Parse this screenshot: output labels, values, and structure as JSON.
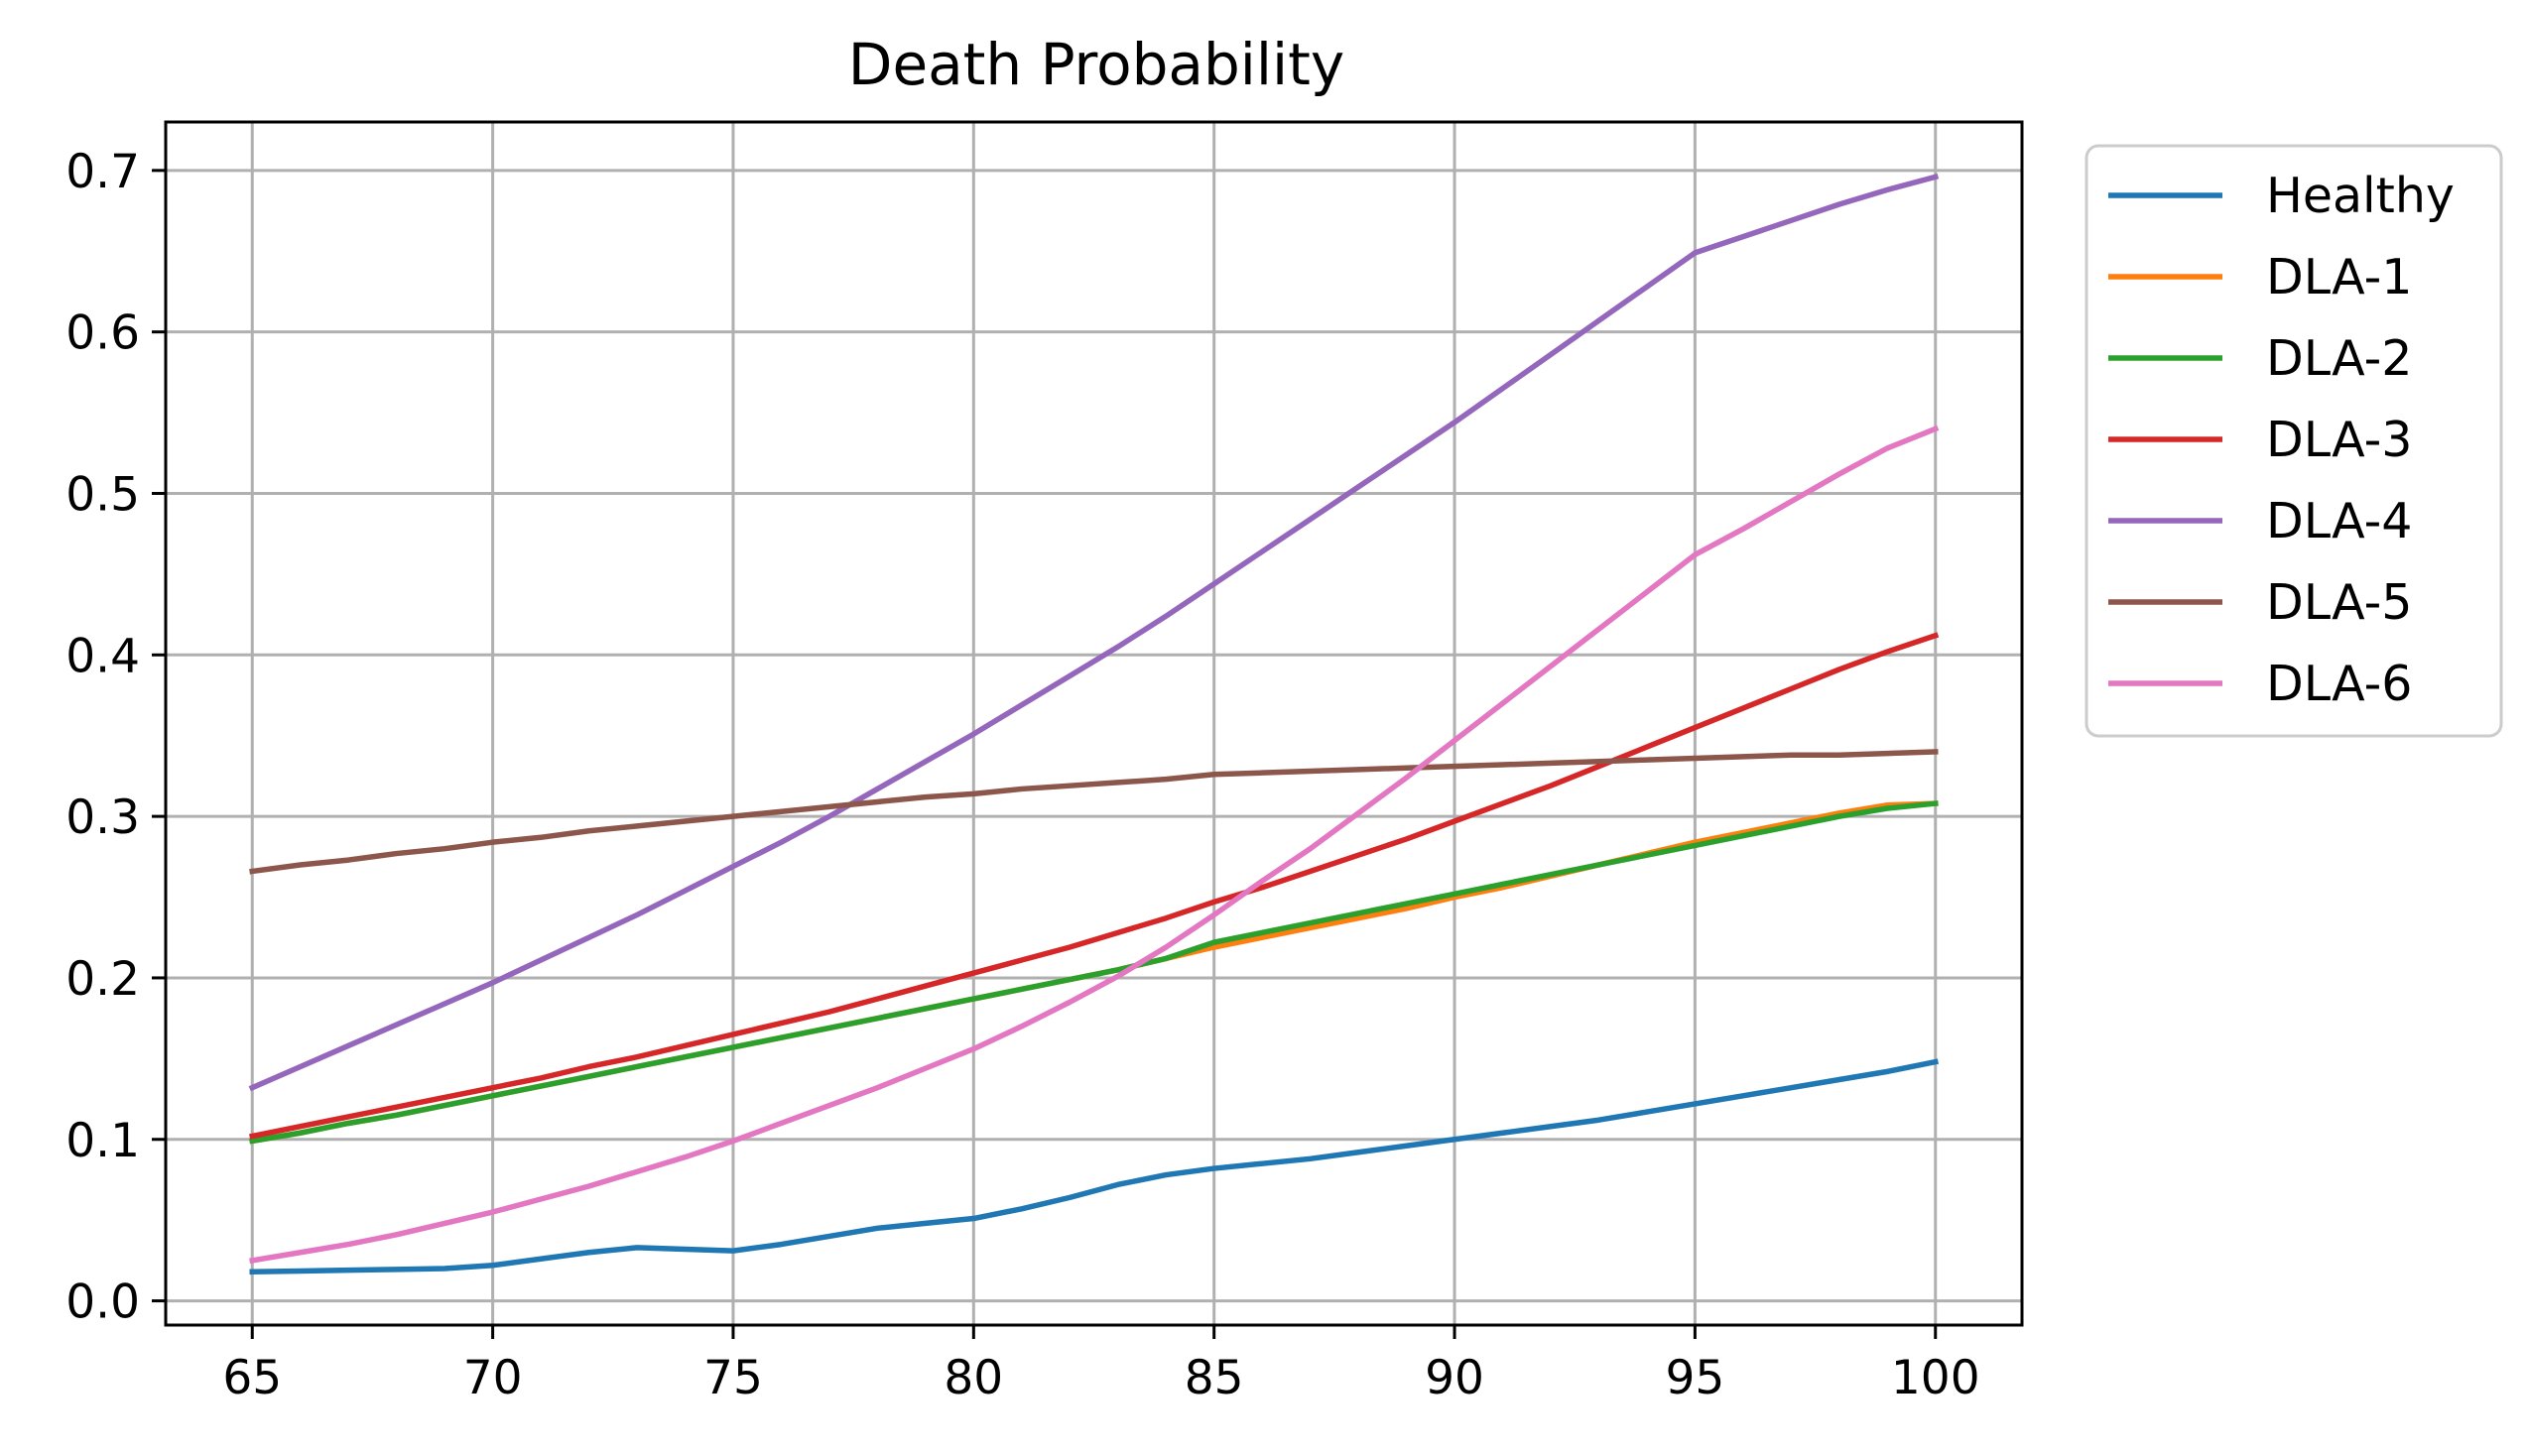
{
  "chart_data": {
    "type": "line",
    "title": "Death Probability",
    "xlabel": "",
    "ylabel": "",
    "xlim": [
      63.2,
      101.8
    ],
    "ylim": [
      -0.015,
      0.73
    ],
    "xticks": [
      65,
      70,
      75,
      80,
      85,
      90,
      95,
      100
    ],
    "xtick_labels": [
      "65",
      "70",
      "75",
      "80",
      "85",
      "90",
      "95",
      "100"
    ],
    "yticks": [
      0.0,
      0.1,
      0.2,
      0.3,
      0.4,
      0.5,
      0.6,
      0.7
    ],
    "ytick_labels": [
      "0.0",
      "0.1",
      "0.2",
      "0.3",
      "0.4",
      "0.5",
      "0.6",
      "0.7"
    ],
    "grid": true,
    "legend_position": "outside-right-top",
    "x": [
      65,
      66,
      67,
      68,
      69,
      70,
      71,
      72,
      73,
      74,
      75,
      76,
      77,
      78,
      79,
      80,
      81,
      82,
      83,
      84,
      85,
      86,
      87,
      88,
      89,
      90,
      91,
      92,
      93,
      94,
      95,
      96,
      97,
      98,
      99,
      100
    ],
    "series": [
      {
        "name": "Healthy",
        "color": "#1f77b4",
        "values": [
          0.018,
          0.0185,
          0.019,
          0.0195,
          0.02,
          0.022,
          0.026,
          0.03,
          0.033,
          0.032,
          0.031,
          0.035,
          0.04,
          0.045,
          0.048,
          0.051,
          0.057,
          0.064,
          0.072,
          0.078,
          0.082,
          0.085,
          0.088,
          0.092,
          0.096,
          0.1,
          0.104,
          0.108,
          0.112,
          0.117,
          0.122,
          0.127,
          0.132,
          0.137,
          0.142,
          0.148
        ]
      },
      {
        "name": "DLA-1",
        "color": "#ff7f0e",
        "values": [
          0.099,
          0.104,
          0.11,
          0.115,
          0.121,
          0.127,
          0.133,
          0.139,
          0.145,
          0.151,
          0.157,
          0.163,
          0.169,
          0.175,
          0.181,
          0.187,
          0.193,
          0.199,
          0.205,
          0.212,
          0.219,
          0.225,
          0.231,
          0.237,
          0.243,
          0.25,
          0.256,
          0.263,
          0.27,
          0.277,
          0.284,
          0.29,
          0.296,
          0.302,
          0.307,
          0.308
        ]
      },
      {
        "name": "DLA-2",
        "color": "#2ca02c",
        "values": [
          0.099,
          0.104,
          0.11,
          0.115,
          0.121,
          0.127,
          0.133,
          0.139,
          0.145,
          0.151,
          0.157,
          0.163,
          0.169,
          0.175,
          0.181,
          0.187,
          0.193,
          0.199,
          0.205,
          0.212,
          0.222,
          0.228,
          0.234,
          0.24,
          0.246,
          0.252,
          0.258,
          0.264,
          0.27,
          0.276,
          0.282,
          0.288,
          0.294,
          0.3,
          0.305,
          0.308
        ]
      },
      {
        "name": "DLA-3",
        "color": "#d62728",
        "values": [
          0.102,
          0.108,
          0.114,
          0.12,
          0.126,
          0.132,
          0.138,
          0.145,
          0.151,
          0.158,
          0.165,
          0.172,
          0.179,
          0.187,
          0.195,
          0.203,
          0.211,
          0.219,
          0.228,
          0.237,
          0.247,
          0.256,
          0.266,
          0.276,
          0.286,
          0.297,
          0.308,
          0.319,
          0.331,
          0.343,
          0.355,
          0.367,
          0.379,
          0.391,
          0.402,
          0.412
        ]
      },
      {
        "name": "DLA-4",
        "color": "#9467bd",
        "values": [
          0.132,
          0.145,
          0.158,
          0.171,
          0.184,
          0.197,
          0.211,
          0.225,
          0.239,
          0.254,
          0.269,
          0.284,
          0.3,
          0.317,
          0.334,
          0.351,
          0.369,
          0.387,
          0.405,
          0.424,
          0.444,
          0.464,
          0.484,
          0.504,
          0.524,
          0.544,
          0.565,
          0.586,
          0.607,
          0.628,
          0.649,
          0.659,
          0.669,
          0.679,
          0.688,
          0.696
        ]
      },
      {
        "name": "DLA-5",
        "color": "#8c564b",
        "values": [
          0.266,
          0.27,
          0.273,
          0.277,
          0.28,
          0.284,
          0.287,
          0.291,
          0.294,
          0.297,
          0.3,
          0.303,
          0.306,
          0.309,
          0.312,
          0.314,
          0.317,
          0.319,
          0.321,
          0.323,
          0.326,
          0.327,
          0.328,
          0.329,
          0.33,
          0.331,
          0.332,
          0.333,
          0.334,
          0.335,
          0.336,
          0.337,
          0.338,
          0.338,
          0.339,
          0.34
        ]
      },
      {
        "name": "DLA-6",
        "color": "#e377c2",
        "values": [
          0.025,
          0.03,
          0.035,
          0.041,
          0.048,
          0.055,
          0.063,
          0.071,
          0.08,
          0.089,
          0.099,
          0.11,
          0.121,
          0.132,
          0.144,
          0.156,
          0.17,
          0.185,
          0.201,
          0.219,
          0.239,
          0.26,
          0.28,
          0.302,
          0.324,
          0.347,
          0.37,
          0.393,
          0.416,
          0.439,
          0.462,
          0.478,
          0.495,
          0.512,
          0.528,
          0.54
        ]
      }
    ]
  }
}
